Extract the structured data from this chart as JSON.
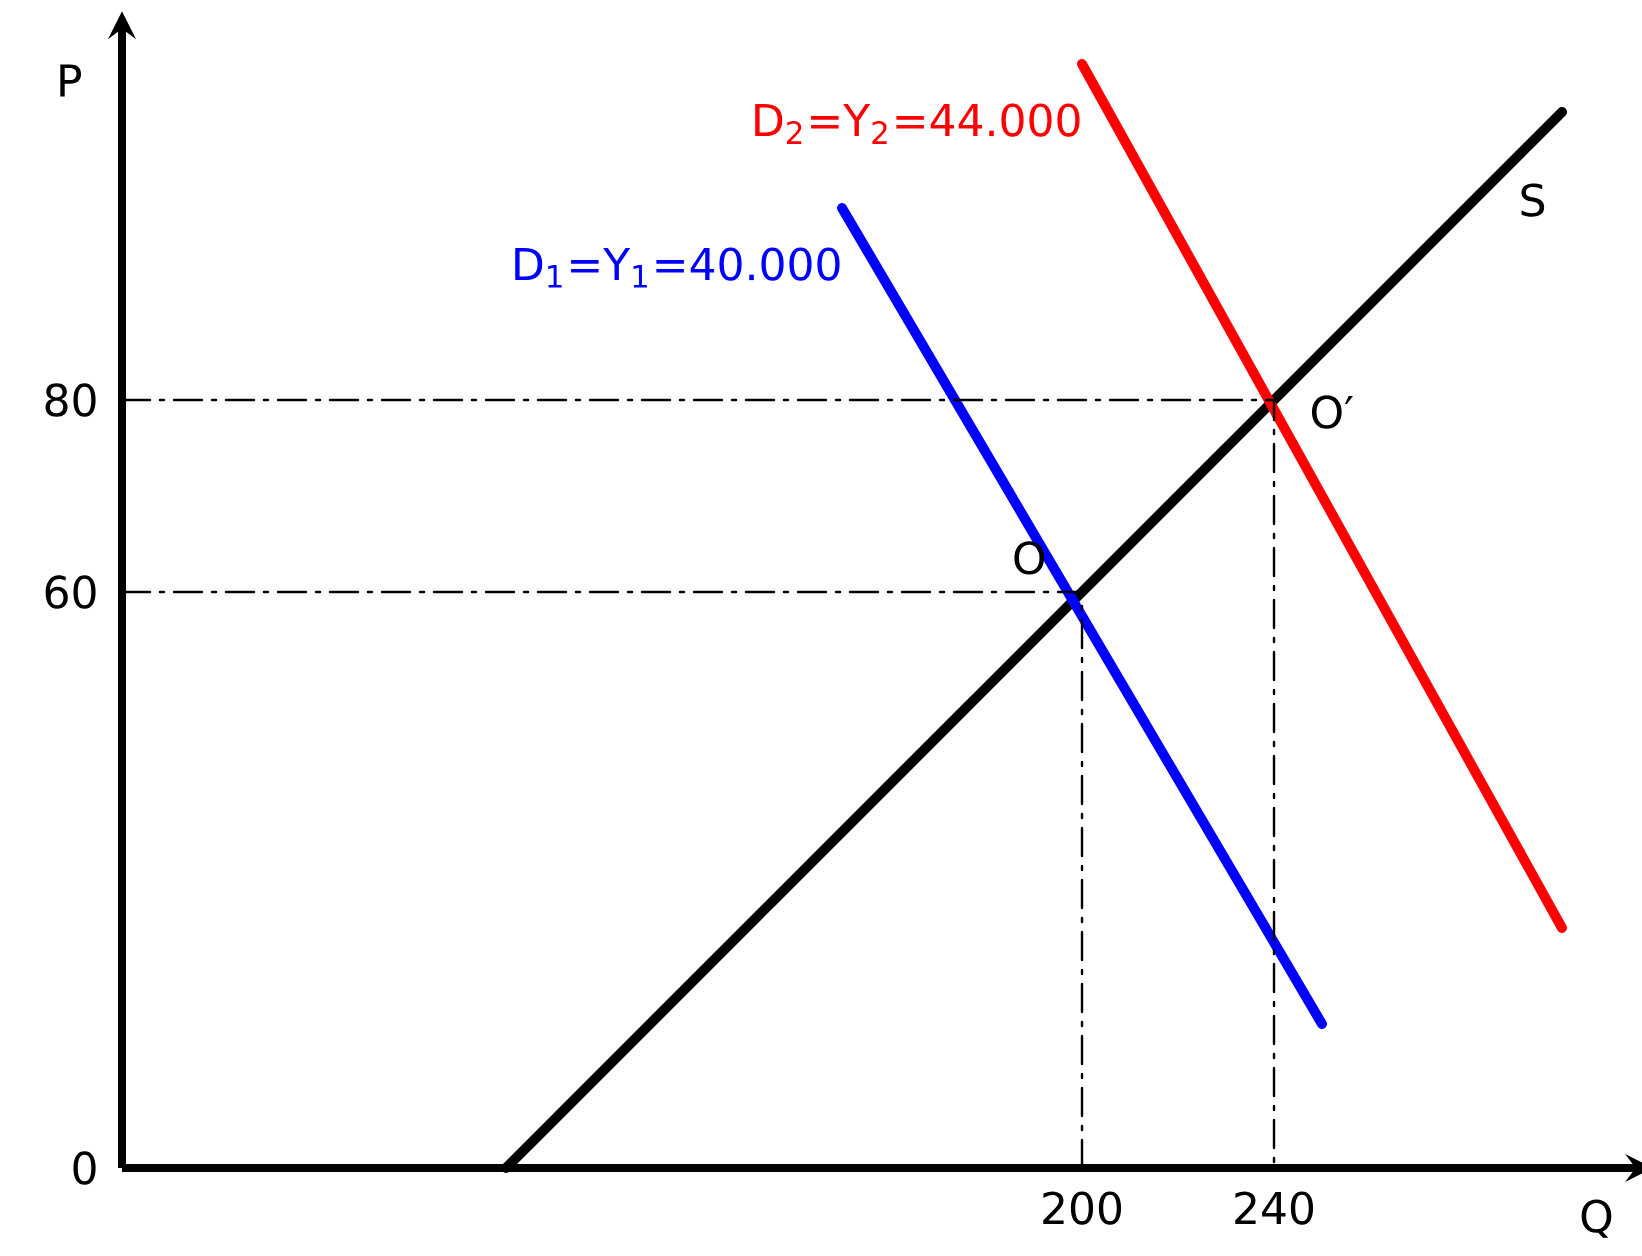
{
  "chart_data": {
    "type": "line",
    "xlabel": "Q",
    "ylabel": "P",
    "xlim": [
      0,
      314
    ],
    "ylim": [
      0,
      118
    ],
    "xticks": [
      200,
      240
    ],
    "yticks": [
      0,
      60,
      80
    ],
    "series": [
      {
        "name": "S",
        "color": "#000000",
        "x": [
          80,
          300
        ],
        "values": [
          0,
          110
        ]
      },
      {
        "name": "D$_{1}$=Y$_{1}$=40.000",
        "color": "#0000ff",
        "x": [
          150,
          250
        ],
        "values": [
          100,
          15
        ]
      },
      {
        "name": "D$_{2}$=Y$_{2}$=44.000",
        "color": "#ff0000",
        "x": [
          200,
          300
        ],
        "values": [
          115,
          25
        ]
      },
      {
        "color": "#000000",
        "line_style": "dashdot",
        "x": [
          0,
          200,
          200
        ],
        "values": [
          60,
          60,
          0
        ]
      },
      {
        "color": "#000000",
        "line_style": "dashdot",
        "x": [
          0,
          240,
          240
        ],
        "values": [
          80,
          80,
          0
        ]
      }
    ],
    "annotations": [
      {
        "text": "O",
        "x": 200,
        "y": 60
      },
      {
        "text": "O′",
        "x": 240,
        "y": 80
      }
    ]
  }
}
